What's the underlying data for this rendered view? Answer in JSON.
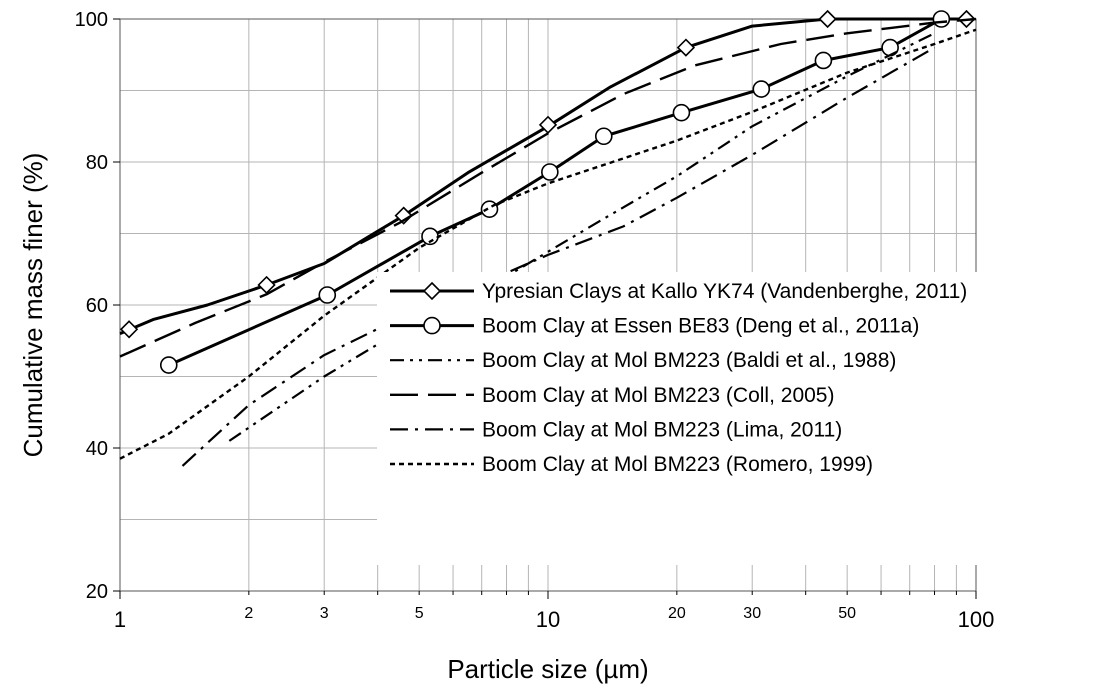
{
  "chart_data": {
    "type": "line",
    "title": "",
    "xlabel": "Particle size (µm)",
    "ylabel": "Cumulative mass finer (%)",
    "xscale": "log",
    "xlim": [
      1,
      100
    ],
    "ylim": [
      20,
      100
    ],
    "x_ticks_major": [
      {
        "value": 1,
        "label": "1"
      },
      {
        "value": 10,
        "label": "10"
      },
      {
        "value": 100,
        "label": "100"
      }
    ],
    "x_ticks_minor": [
      {
        "value": 2,
        "label": "2"
      },
      {
        "value": 3,
        "label": "3"
      },
      {
        "value": 5,
        "label": "5"
      },
      {
        "value": 20,
        "label": "20"
      },
      {
        "value": 30,
        "label": "30"
      },
      {
        "value": 50,
        "label": "50"
      }
    ],
    "y_ticks": [
      {
        "value": 20,
        "label": "20"
      },
      {
        "value": 40,
        "label": "40"
      },
      {
        "value": 60,
        "label": "60"
      },
      {
        "value": 80,
        "label": "80"
      },
      {
        "value": 100,
        "label": "100"
      }
    ],
    "grid": true,
    "legend_position": "bottom-right",
    "series": [
      {
        "name": "Ypresian Clays at Kallo YK74 (Vandenberghe, 2011)",
        "style": "solid",
        "marker": "diamond",
        "x": [
          1,
          1.2,
          1.6,
          2.2,
          3,
          4.6,
          6.5,
          10,
          14,
          21,
          30,
          45,
          80,
          95
        ],
        "y": [
          56,
          58,
          60,
          62.8,
          65.8,
          72.5,
          78.5,
          85,
          90.5,
          96,
          99,
          100,
          100,
          100
        ],
        "marker_x": [
          1.05,
          2.2,
          4.6,
          10,
          21,
          45,
          95
        ],
        "marker_y": [
          56.6,
          62.8,
          72.5,
          85.2,
          96,
          100,
          100
        ]
      },
      {
        "name": "Boom Clay at Essen BE83 (Deng et al., 2011a)",
        "style": "solid",
        "marker": "circle",
        "x": [
          1.3,
          3.05,
          5.3,
          7.3,
          10.1,
          13.5,
          20.5,
          31.5,
          44,
          63,
          83
        ],
        "y": [
          51.6,
          61.4,
          69.6,
          73.4,
          78.6,
          83.6,
          86.9,
          90.2,
          94.2,
          96,
          100
        ],
        "marker_x": [
          1.3,
          3.05,
          5.3,
          7.3,
          10.1,
          13.5,
          20.5,
          31.5,
          44,
          63,
          83
        ],
        "marker_y": [
          51.6,
          61.4,
          69.6,
          73.4,
          78.6,
          83.6,
          86.9,
          90.2,
          94.2,
          96,
          100
        ]
      },
      {
        "name": "Boom Clay at Mol BM223 (Baldi et al., 1988)",
        "style": "dash-dot-dot",
        "marker": "none",
        "x": [
          1.8,
          3,
          5,
          8,
          13,
          20,
          30,
          50,
          80
        ],
        "y": [
          41,
          50,
          58,
          64,
          71.5,
          78,
          85,
          92,
          98
        ]
      },
      {
        "name": "Boom Clay at Mol BM223 (Coll, 2005)",
        "style": "long-dash",
        "marker": "none",
        "x": [
          1,
          1.5,
          2.2,
          3,
          4.5,
          7,
          10,
          15,
          22,
          35,
          50,
          80,
          100
        ],
        "y": [
          52.8,
          57.5,
          61.5,
          66,
          71.5,
          78.5,
          84,
          89.5,
          93.5,
          96.5,
          98,
          99.5,
          100
        ]
      },
      {
        "name": "Boom Clay at Mol BM223 (Lima, 2011)",
        "style": "dash-dot",
        "marker": "none",
        "x": [
          1.4,
          2,
          3,
          5,
          7,
          10,
          15,
          20,
          30,
          50,
          80
        ],
        "y": [
          37.5,
          46,
          53,
          59.5,
          63,
          67,
          71,
          75,
          81,
          89,
          96
        ]
      },
      {
        "name": "Boom Clay at Mol BM223 (Romero, 1999)",
        "style": "short-dash",
        "marker": "none",
        "x": [
          1,
          1.3,
          2,
          3,
          5,
          7.5,
          10,
          15,
          20,
          30,
          50,
          80,
          100
        ],
        "y": [
          38.5,
          42,
          50,
          58.5,
          68,
          74,
          77,
          80.5,
          83,
          87,
          92.5,
          96.5,
          98.5
        ]
      }
    ]
  }
}
